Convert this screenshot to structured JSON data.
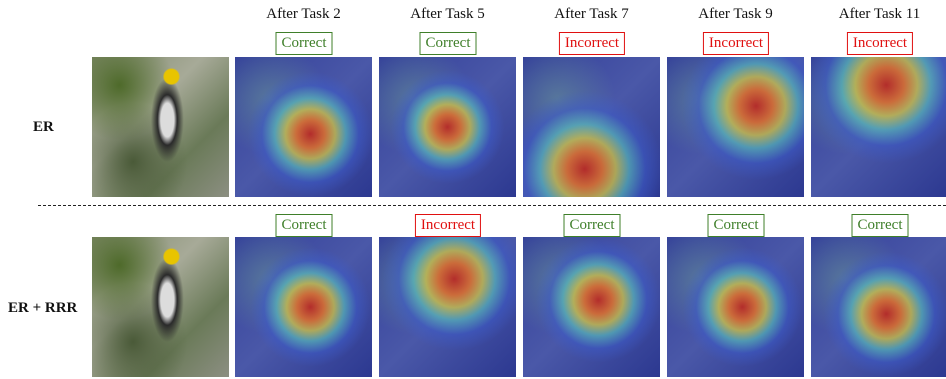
{
  "columns": [
    "After Task 2",
    "After Task 5",
    "After Task 7",
    "After Task 9",
    "After Task 11"
  ],
  "rows": [
    {
      "label": "ER",
      "results": [
        "Correct",
        "Correct",
        "Incorrect",
        "Incorrect",
        "Incorrect"
      ]
    },
    {
      "label": "ER + RRR",
      "results": [
        "Correct",
        "Incorrect",
        "Correct",
        "Correct",
        "Correct"
      ]
    }
  ]
}
